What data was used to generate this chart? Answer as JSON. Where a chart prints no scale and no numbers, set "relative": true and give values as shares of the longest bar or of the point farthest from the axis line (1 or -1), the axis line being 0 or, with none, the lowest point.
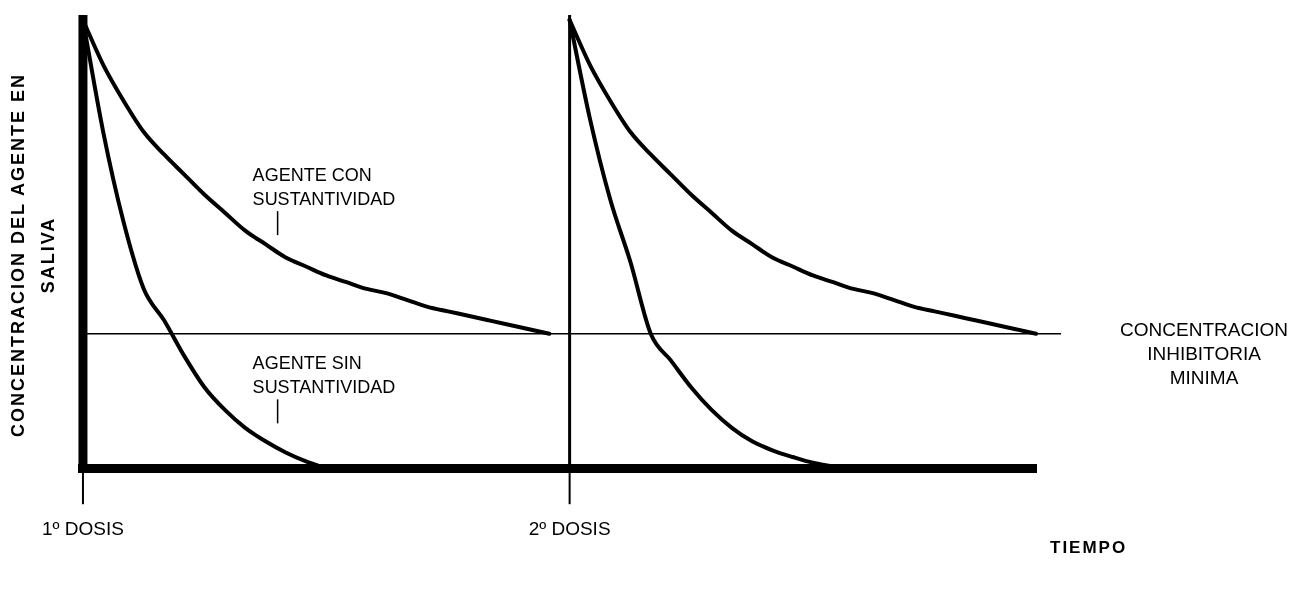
{
  "chart_data": {
    "type": "line",
    "relative": true,
    "xlabel": "TIEMPO",
    "ylabel": "CONCENTRACION DEL AGENTE EN SALIVA",
    "categories": [
      "1º DOSIS",
      null,
      null,
      null,
      null,
      null,
      null,
      null,
      null,
      null,
      null,
      null,
      null,
      null,
      null,
      null,
      null,
      null,
      null,
      null,
      null,
      null,
      null,
      null,
      "2º DOSIS",
      null,
      null,
      null,
      null,
      null,
      null,
      null,
      null,
      null,
      null,
      null,
      null,
      null,
      null,
      null,
      null,
      null,
      null,
      null,
      null,
      null,
      null,
      null
    ],
    "series": [
      {
        "color": "#000000",
        "values": [
          1,
          0.9,
          0.82,
          0.75,
          0.7,
          0.655,
          0.61,
          0.57,
          0.53,
          0.5,
          0.47,
          0.45,
          0.43,
          0.415,
          0.4,
          0.39,
          0.375,
          0.36,
          0.35,
          0.34,
          0.33,
          0.32,
          0.31,
          0.3,
          null,
          null,
          null,
          null,
          null,
          null,
          null,
          null,
          null,
          null,
          null,
          null,
          null,
          null,
          null,
          null,
          null,
          null,
          null,
          null,
          null,
          null,
          null,
          null
        ]
      },
      {
        "color": "#000000",
        "values": [
          1,
          0.75,
          0.55,
          0.4,
          0.33,
          0.25,
          0.18,
          0.13,
          0.09,
          0.06,
          0.035,
          0.015,
          0,
          null,
          null,
          null,
          null,
          null,
          null,
          null,
          null,
          null,
          null,
          null,
          null,
          null,
          null,
          null,
          null,
          null,
          null,
          null,
          null,
          null,
          null,
          null,
          null,
          null,
          null,
          null,
          null,
          null,
          null,
          null,
          null,
          null,
          null,
          null
        ]
      },
      {
        "color": "#000000",
        "values": [
          null,
          null,
          null,
          null,
          null,
          null,
          null,
          null,
          null,
          null,
          null,
          null,
          null,
          null,
          null,
          null,
          null,
          null,
          null,
          null,
          null,
          null,
          null,
          null,
          1,
          0.9,
          0.82,
          0.75,
          0.7,
          0.655,
          0.61,
          0.57,
          0.53,
          0.5,
          0.47,
          0.45,
          0.43,
          0.415,
          0.4,
          0.39,
          0.375,
          0.36,
          0.35,
          0.34,
          0.33,
          0.32,
          0.31,
          0.3
        ]
      },
      {
        "color": "#000000",
        "values": [
          null,
          null,
          null,
          null,
          null,
          null,
          null,
          null,
          null,
          null,
          null,
          null,
          null,
          null,
          null,
          null,
          null,
          null,
          null,
          null,
          null,
          null,
          null,
          null,
          1,
          0.78,
          0.6,
          0.46,
          0.3,
          0.24,
          0.18,
          0.13,
          0.09,
          0.06,
          0.04,
          0.025,
          0.012,
          0.004,
          0,
          null,
          null,
          null,
          null,
          null,
          null,
          null,
          null,
          null
        ]
      }
    ],
    "ref_lines": [
      {
        "axis": "y",
        "value": 0.3,
        "label": "CONCENTRACION INHIBITORIA MINIMA",
        "color": "#000000"
      },
      {
        "axis": "x",
        "value": "2º DOSIS",
        "color": "#000000"
      }
    ],
    "annotations": [
      "AGENTE CON SUSTANTIVIDAD",
      "AGENTE SIN SUSTANTIVIDAD"
    ],
    "legend": false,
    "marker": "none",
    "line_style": "solid"
  }
}
